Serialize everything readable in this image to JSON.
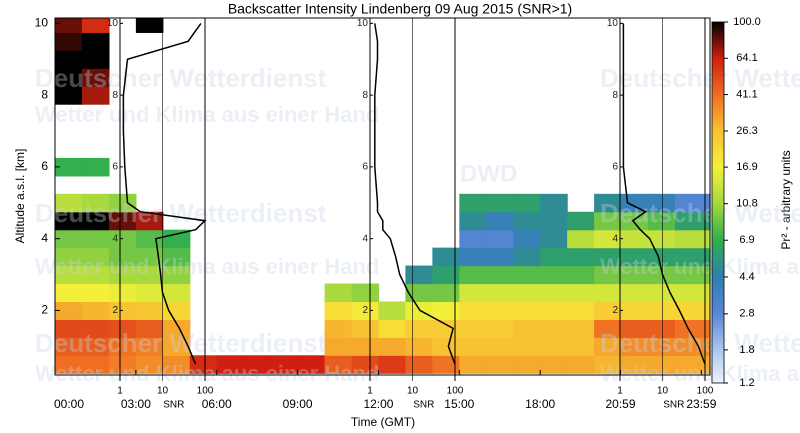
{
  "chart_data": {
    "type": "heatmap",
    "title": "Backscatter Intensity Lindenberg 09 Aug 2015 (SNR>1)",
    "xlabel": "Time (GMT)",
    "ylabel": "Altitude a.s.l. [km]",
    "colorbar_label": "Pr² - arbitrary units",
    "watermark": [
      "Deutscher Wetterdienst",
      "Wetter und Klima aus einer Hand",
      "DWD"
    ],
    "xlim": [
      0,
      24.3
    ],
    "xticks": [
      {
        "value": 0,
        "label": "00:00"
      },
      {
        "value": 3,
        "label": "03:00"
      },
      {
        "value": 6,
        "label": "06:00"
      },
      {
        "value": 9,
        "label": "09:00"
      },
      {
        "value": 12,
        "label": "12:00"
      },
      {
        "value": 15,
        "label": "15:00"
      },
      {
        "value": 18,
        "label": "18:00"
      },
      {
        "value": 20.98,
        "label": "20:59"
      },
      {
        "value": 23.98,
        "label": "23:59"
      }
    ],
    "ylim": [
      0.2,
      10.15
    ],
    "yticks": [
      2,
      4,
      6,
      8,
      10
    ],
    "colorbar_lim": [
      1.2,
      100
    ],
    "colorbar_ticks": [
      1.2,
      1.8,
      2.8,
      4.4,
      6.9,
      10.8,
      16.9,
      26.3,
      41.1,
      64.1,
      {
        "value": 100,
        "label": "100.0"
      }
    ],
    "colorscale": [
      "#eef3fb",
      "#a9c8f0",
      "#5a86d6",
      "#2f7fb0",
      "#2fae4e",
      "#a6d83e",
      "#f4f03a",
      "#f8c232",
      "#ef6e22",
      "#cf1f10",
      "#000000"
    ],
    "log_colorbar": true,
    "xbins": [
      0,
      1,
      2,
      3,
      4,
      5,
      6,
      7,
      8,
      9,
      10,
      11,
      12,
      13,
      14,
      15,
      16,
      17,
      18,
      19,
      20,
      21,
      22,
      23,
      24.3
    ],
    "ybins": [
      0.25,
      0.75,
      1.25,
      1.75,
      2.25,
      2.75,
      3.25,
      3.75,
      4.25,
      4.75,
      5.25,
      5.75,
      6.25,
      6.75,
      7.25,
      7.75,
      8.25,
      8.75,
      9.25,
      9.75,
      10.25
    ],
    "z": [
      [
        41,
        41,
        38,
        35,
        35,
        60,
        64,
        64,
        64,
        64,
        45,
        50,
        55,
        45,
        40,
        30,
        30,
        30,
        30,
        30,
        28,
        30,
        30,
        30
      ],
      [
        45,
        45,
        40,
        38,
        30,
        null,
        null,
        null,
        null,
        null,
        30,
        30,
        30,
        28,
        26,
        26,
        26,
        26,
        26,
        26,
        30,
        35,
        35,
        35
      ],
      [
        50,
        50,
        48,
        45,
        30,
        null,
        null,
        null,
        null,
        null,
        28,
        26,
        20,
        24,
        24,
        24,
        24,
        26,
        26,
        26,
        40,
        45,
        45,
        40
      ],
      [
        30,
        28,
        26,
        25,
        22,
        null,
        null,
        null,
        null,
        null,
        20,
        18,
        12,
        16,
        17,
        20,
        20,
        20,
        20,
        20,
        24,
        22,
        22,
        22
      ],
      [
        17,
        17,
        16,
        15,
        14,
        null,
        null,
        null,
        null,
        null,
        11,
        10,
        null,
        9,
        9,
        14,
        14,
        14,
        14,
        14,
        14,
        14,
        14,
        14
      ],
      [
        12,
        12,
        11,
        11,
        10,
        null,
        null,
        null,
        null,
        null,
        null,
        null,
        null,
        5,
        6,
        8,
        8,
        8,
        8,
        8,
        9,
        9,
        9,
        9
      ],
      [
        10,
        10,
        9,
        9,
        8,
        null,
        null,
        null,
        null,
        null,
        null,
        null,
        null,
        null,
        5,
        4,
        4,
        5,
        6,
        6,
        6,
        6,
        6,
        6
      ],
      [
        9,
        9,
        9,
        8,
        7,
        null,
        null,
        null,
        null,
        null,
        null,
        null,
        null,
        null,
        null,
        3,
        3,
        4,
        5,
        12,
        14,
        13,
        13,
        12
      ],
      [
        100,
        100,
        80,
        70,
        null,
        null,
        null,
        null,
        null,
        null,
        null,
        null,
        null,
        null,
        null,
        5,
        4,
        5,
        5,
        6,
        9,
        9,
        8,
        6
      ],
      [
        12,
        11,
        10,
        null,
        null,
        null,
        null,
        null,
        null,
        null,
        null,
        null,
        null,
        null,
        null,
        6,
        6,
        6,
        5,
        null,
        5,
        4,
        4,
        3
      ],
      [
        null,
        null,
        null,
        null,
        null,
        null,
        null,
        null,
        null,
        null,
        null,
        null,
        null,
        null,
        null,
        null,
        null,
        null,
        null,
        null,
        null,
        null,
        null,
        null
      ],
      [
        7,
        7,
        null,
        null,
        null,
        null,
        null,
        null,
        null,
        null,
        null,
        null,
        null,
        null,
        null,
        null,
        null,
        null,
        null,
        null,
        null,
        null,
        null,
        null
      ],
      [
        null,
        null,
        null,
        null,
        null,
        null,
        null,
        null,
        null,
        null,
        null,
        null,
        null,
        null,
        null,
        null,
        null,
        null,
        null,
        null,
        null,
        null,
        null,
        null
      ],
      [
        null,
        null,
        null,
        null,
        null,
        null,
        null,
        null,
        null,
        null,
        null,
        null,
        null,
        null,
        null,
        null,
        null,
        null,
        null,
        null,
        null,
        null,
        null,
        null
      ],
      [
        null,
        null,
        null,
        null,
        null,
        null,
        null,
        null,
        null,
        null,
        null,
        null,
        null,
        null,
        null,
        null,
        null,
        null,
        null,
        null,
        null,
        null,
        null,
        null
      ],
      [
        100,
        70,
        null,
        null,
        null,
        null,
        null,
        null,
        null,
        null,
        null,
        null,
        null,
        null,
        null,
        null,
        null,
        null,
        null,
        null,
        null,
        null,
        null,
        null
      ],
      [
        100,
        80,
        null,
        null,
        null,
        null,
        null,
        null,
        null,
        null,
        null,
        null,
        null,
        null,
        null,
        null,
        null,
        null,
        null,
        null,
        null,
        null,
        null,
        null
      ],
      [
        100,
        100,
        null,
        null,
        null,
        null,
        null,
        null,
        null,
        null,
        null,
        null,
        null,
        null,
        null,
        null,
        null,
        null,
        null,
        null,
        null,
        null,
        null,
        null
      ],
      [
        90,
        100,
        null,
        null,
        null,
        null,
        null,
        null,
        null,
        null,
        null,
        null,
        null,
        null,
        null,
        null,
        null,
        null,
        null,
        null,
        null,
        null,
        null,
        null
      ],
      [
        80,
        60,
        null,
        100,
        null,
        null,
        null,
        null,
        null,
        null,
        null,
        null,
        null,
        null,
        null,
        null,
        null,
        null,
        null,
        null,
        null,
        null,
        null,
        null
      ]
    ],
    "snr_label": "SNR",
    "snr_lim": [
      1,
      100
    ],
    "snr_ticks": [
      1,
      10,
      100
    ],
    "profile_altitude": [
      0.5,
      1,
      1.5,
      2,
      2.5,
      3,
      3.5,
      4,
      4.25,
      4.5,
      4.75,
      5,
      6,
      7,
      8,
      9,
      9.5,
      10
    ],
    "profiles": [
      {
        "snr": [
          60,
          40,
          25,
          14,
          10,
          9,
          8,
          7,
          60,
          100,
          3,
          1.5,
          1.3,
          1.2,
          1.2,
          1.5,
          40,
          80
        ]
      },
      {
        "snr": [
          100,
          70,
          90,
          15,
          8,
          5,
          4,
          3,
          2,
          2,
          1.5,
          1.5,
          1.3,
          1.3,
          1.3,
          1.5,
          1.5,
          1.3
        ]
      },
      {
        "snr": [
          100,
          70,
          40,
          25,
          15,
          10,
          8,
          5,
          3,
          2,
          4,
          1.5,
          1.2,
          1.2,
          1.2,
          1.2,
          1.2,
          1.2
        ]
      }
    ]
  }
}
